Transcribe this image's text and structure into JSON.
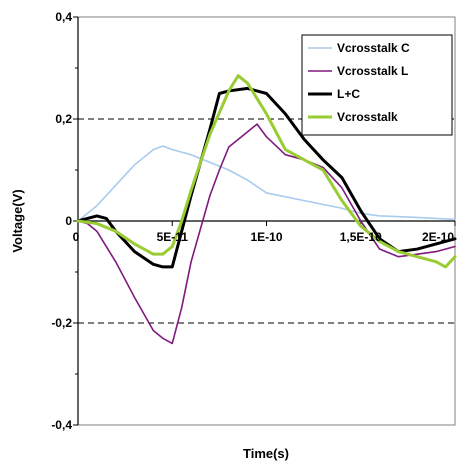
{
  "chart_data": {
    "type": "line",
    "xlabel": "Time(s)",
    "ylabel": "Voltage(V)",
    "xlim": [
      0,
      2e-10
    ],
    "ylim": [
      -0.4,
      0.4
    ],
    "x_ticks": [
      0,
      5e-11,
      1e-10,
      1.5e-10,
      2e-10
    ],
    "x_tick_labels": [
      "0",
      "5E-11",
      "1E-10",
      "1,5E-10",
      "2E-10"
    ],
    "y_ticks": [
      -0.4,
      -0.2,
      0,
      0.2,
      0.4
    ],
    "y_tick_labels": [
      "-0,4",
      "-0,2",
      "0",
      "0,2",
      "0,4"
    ],
    "grid": "horizontal dashed at ±0.2",
    "legend_position": "top-right",
    "series": [
      {
        "name": "Vcrosstalk C",
        "color": "#a9cbee",
        "width": 1.6,
        "x": [
          0,
          1e-11,
          2e-11,
          3e-11,
          4e-11,
          4.5e-11,
          5e-11,
          6e-11,
          7e-11,
          8e-11,
          9e-11,
          1e-10,
          1.2e-10,
          1.4e-10,
          1.5e-10,
          1.6e-10,
          1.8e-10,
          2e-10
        ],
        "values": [
          0,
          0.03,
          0.07,
          0.11,
          0.14,
          0.147,
          0.14,
          0.13,
          0.115,
          0.1,
          0.08,
          0.055,
          0.04,
          0.025,
          0.015,
          0.01,
          0.007,
          0.003
        ]
      },
      {
        "name": "Vcrosstalk L",
        "color": "#7f1a7e",
        "width": 1.6,
        "x": [
          0,
          5e-12,
          1e-11,
          2e-11,
          3e-11,
          4e-11,
          4.5e-11,
          5e-11,
          5.5e-11,
          6e-11,
          7e-11,
          7.5e-11,
          8e-11,
          9e-11,
          9.5e-11,
          1e-10,
          1.1e-10,
          1.2e-10,
          1.3e-10,
          1.4e-10,
          1.5e-10,
          1.6e-10,
          1.7e-10,
          1.8e-10,
          1.9e-10,
          2e-10
        ],
        "values": [
          0,
          -0.005,
          -0.02,
          -0.08,
          -0.15,
          -0.215,
          -0.23,
          -0.24,
          -0.17,
          -0.08,
          0.05,
          0.1,
          0.145,
          0.175,
          0.19,
          0.165,
          0.13,
          0.12,
          0.105,
          0.065,
          0.0,
          -0.055,
          -0.07,
          -0.065,
          -0.06,
          -0.05
        ]
      },
      {
        "name": "L+C",
        "color": "#000000",
        "width": 3,
        "x": [
          0,
          1e-11,
          1.5e-11,
          2e-11,
          3e-11,
          4e-11,
          4.5e-11,
          5e-11,
          5.5e-11,
          6e-11,
          7e-11,
          7.5e-11,
          8e-11,
          9e-11,
          1e-10,
          1.1e-10,
          1.2e-10,
          1.3e-10,
          1.4e-10,
          1.5e-10,
          1.6e-10,
          1.7e-10,
          1.8e-10,
          1.9e-10,
          2e-10
        ],
        "values": [
          0,
          0.01,
          0.005,
          -0.02,
          -0.06,
          -0.085,
          -0.09,
          -0.09,
          -0.02,
          0.05,
          0.18,
          0.25,
          0.255,
          0.26,
          0.25,
          0.21,
          0.16,
          0.12,
          0.085,
          0.02,
          -0.035,
          -0.06,
          -0.055,
          -0.045,
          -0.035
        ]
      },
      {
        "name": "Vcrosstalk",
        "color": "#99cc33",
        "width": 3,
        "x": [
          0,
          1e-11,
          2e-11,
          3e-11,
          4e-11,
          4.5e-11,
          5e-11,
          5.5e-11,
          6e-11,
          7e-11,
          8e-11,
          8.5e-11,
          9e-11,
          1e-10,
          1.1e-10,
          1.2e-10,
          1.3e-10,
          1.4e-10,
          1.5e-10,
          1.6e-10,
          1.7e-10,
          1.8e-10,
          1.9e-10,
          1.95e-10,
          2e-10
        ],
        "values": [
          0,
          -0.005,
          -0.02,
          -0.045,
          -0.065,
          -0.065,
          -0.05,
          0.0,
          0.06,
          0.17,
          0.255,
          0.285,
          0.27,
          0.21,
          0.14,
          0.12,
          0.1,
          0.04,
          -0.01,
          -0.04,
          -0.06,
          -0.07,
          -0.08,
          -0.09,
          -0.07
        ]
      }
    ]
  }
}
